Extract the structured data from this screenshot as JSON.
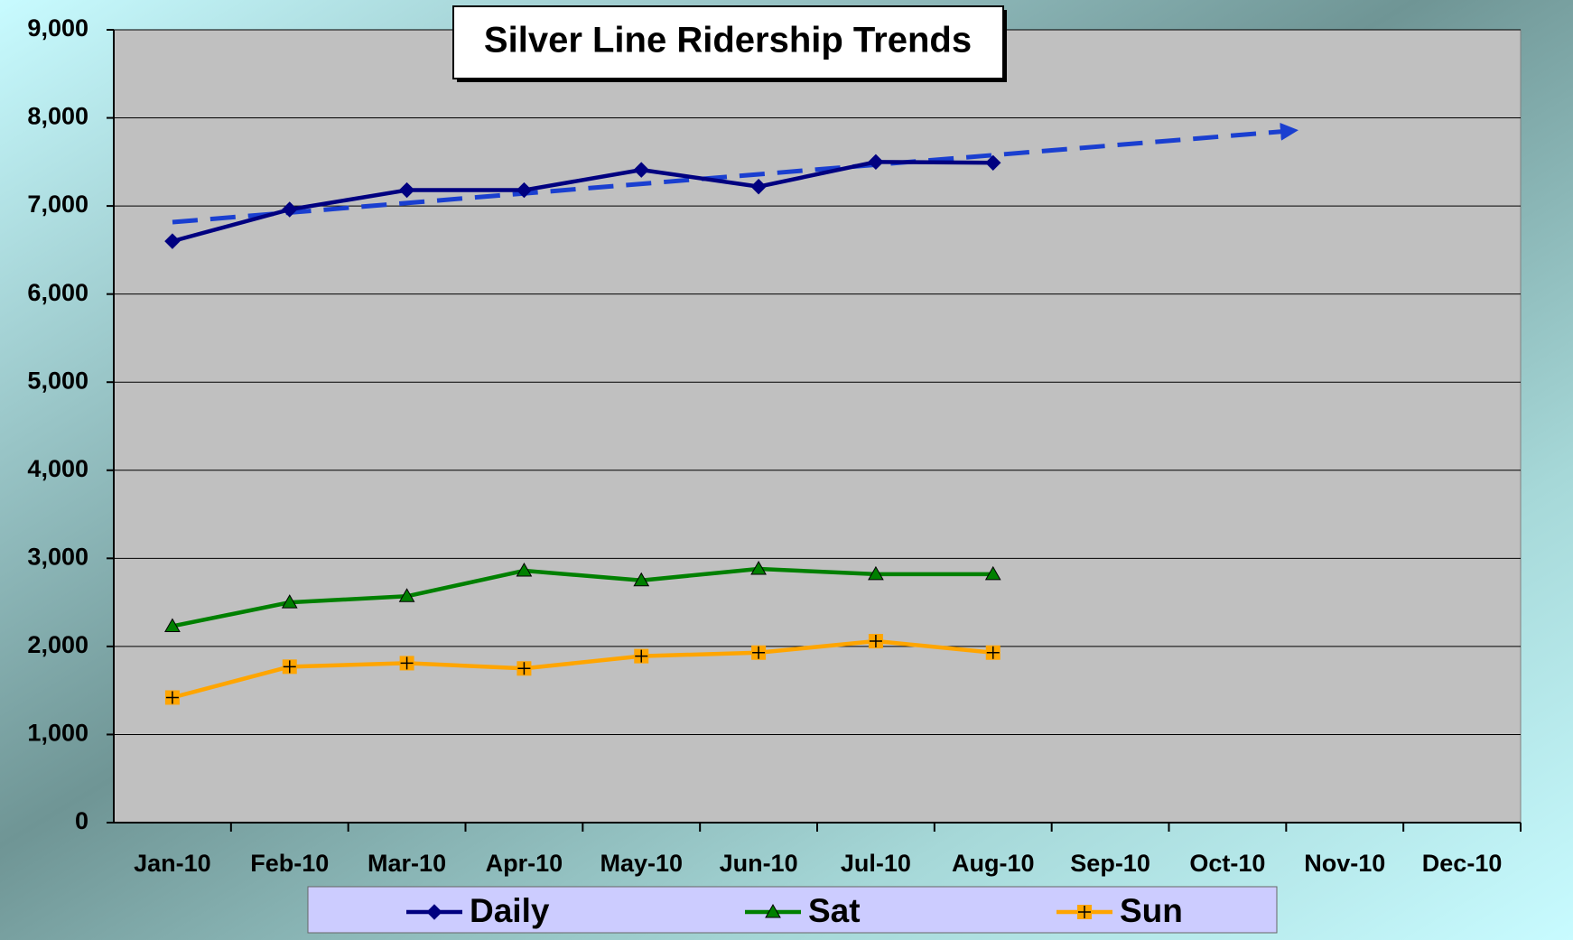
{
  "chart_data": {
    "type": "line",
    "title": "Silver Line Ridership Trends",
    "categories": [
      "Jan-10",
      "Feb-10",
      "Mar-10",
      "Apr-10",
      "May-10",
      "Jun-10",
      "Jul-10",
      "Aug-10",
      "Sep-10",
      "Oct-10",
      "Nov-10",
      "Dec-10"
    ],
    "series": [
      {
        "name": "Daily",
        "color": "#000080",
        "marker": "diamond",
        "values": [
          6600,
          6960,
          7180,
          7180,
          7410,
          7220,
          7500,
          7490,
          null,
          null,
          null,
          null
        ]
      },
      {
        "name": "Sat",
        "color": "#008000",
        "marker": "triangle",
        "values": [
          2230,
          2500,
          2570,
          2860,
          2750,
          2880,
          2820,
          2820,
          null,
          null,
          null,
          null
        ]
      },
      {
        "name": "Sun",
        "color": "#ffa500",
        "marker": "square-plus",
        "values": [
          1420,
          1770,
          1810,
          1750,
          1890,
          1930,
          2060,
          1930,
          null,
          null,
          null,
          null
        ]
      }
    ],
    "ylim": [
      0,
      9000
    ],
    "yticks": [
      0,
      {
        "value": 1000,
        "label": "1,000"
      },
      {
        "value": 2000,
        "label": "2,000"
      },
      {
        "value": 3000,
        "label": "3,000"
      },
      {
        "value": 4000,
        "label": "4,000"
      },
      {
        "value": 5000,
        "label": "5,000"
      },
      {
        "value": 6000,
        "label": "6,000"
      },
      {
        "value": 7000,
        "label": "7,000"
      },
      {
        "value": 8000,
        "label": "8,000"
      },
      {
        "value": 9000,
        "label": "9,000"
      }
    ],
    "grid": true,
    "legend": "bottom"
  }
}
